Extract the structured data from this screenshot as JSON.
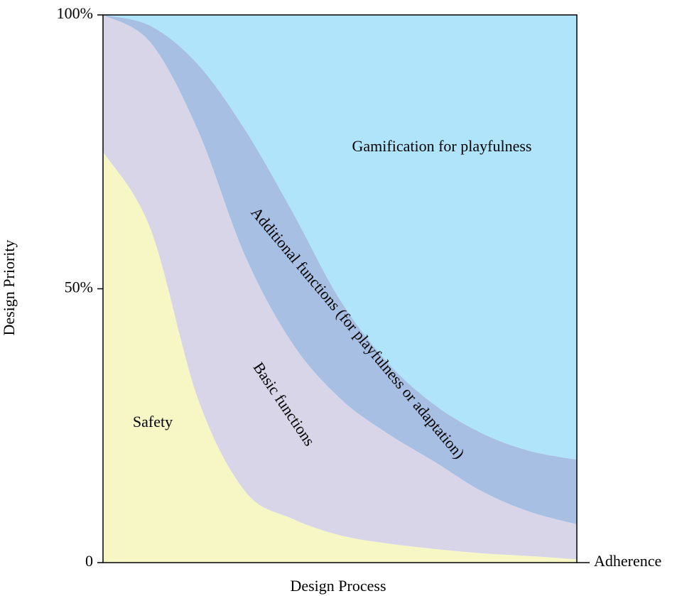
{
  "chart_data": {
    "type": "stacked_area",
    "x_label": "Design Process",
    "y_label": "Design Priority",
    "x_end_label": "Adherence",
    "x": [
      0,
      1,
      2,
      3,
      4,
      5,
      6,
      7,
      8,
      9,
      10
    ],
    "xlim": [
      0,
      10
    ],
    "ylim": [
      0,
      100
    ],
    "yticks": [
      0,
      {
        "value": 50,
        "label": "50%"
      },
      {
        "value": 100,
        "label": "100%"
      }
    ],
    "series": [
      {
        "name": "Safety",
        "color": "#f7f7c6",
        "values": [
          75,
          61,
          30,
          13,
          8,
          5,
          3.5,
          2.5,
          1.7,
          1.2,
          0.6
        ]
      },
      {
        "name": "Basic functions",
        "color": "#d9d5e8",
        "values": [
          25,
          34,
          49,
          43,
          32,
          25,
          20.1,
          15.9,
          11.3,
          8.1,
          6.4
        ]
      },
      {
        "name": "Additional functions (for playfulness or adaptation)",
        "color": "#a6bfe3",
        "values": [
          0,
          3,
          12,
          23,
          24,
          18,
          13,
          10.4,
          10.6,
          11.1,
          11.8
        ]
      },
      {
        "name": "Gamification for playfulness",
        "color": "#b0e4fb",
        "values": [
          0,
          2,
          9,
          21,
          36,
          52,
          63.4,
          71.2,
          76.4,
          79.6,
          81.2
        ]
      }
    ]
  }
}
